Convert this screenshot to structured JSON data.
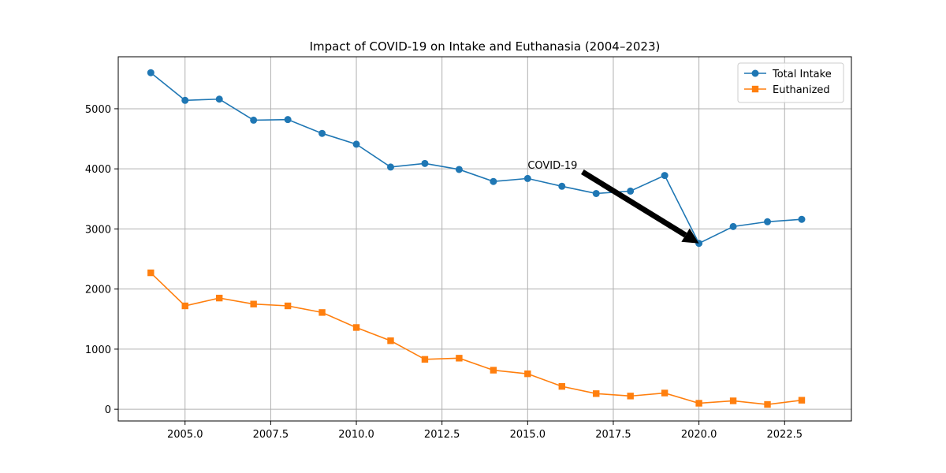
{
  "chart_data": {
    "type": "line",
    "title": "Impact of COVID-19 on Intake and Euthanasia (2004–2023)",
    "xlabel": "",
    "ylabel": "",
    "xlim": [
      2003.05,
      2024.45
    ],
    "ylim": [
      -195,
      5865
    ],
    "xticks": [
      2005.0,
      2007.5,
      2010.0,
      2012.5,
      2015.0,
      2017.5,
      2020.0,
      2022.5
    ],
    "xtick_labels": [
      "2005.0",
      "2007.5",
      "2010.0",
      "2012.5",
      "2015.0",
      "2017.5",
      "2020.0",
      "2022.5"
    ],
    "yticks": [
      0,
      1000,
      2000,
      3000,
      4000,
      5000
    ],
    "ytick_labels": [
      "0",
      "1000",
      "2000",
      "3000",
      "4000",
      "5000"
    ],
    "grid": true,
    "legend_position": "top-right",
    "x": [
      2004,
      2005,
      2006,
      2007,
      2008,
      2009,
      2010,
      2011,
      2012,
      2013,
      2014,
      2015,
      2016,
      2017,
      2018,
      2019,
      2020,
      2021,
      2022,
      2023
    ],
    "series": [
      {
        "name": "Total Intake",
        "color": "#1f77b4",
        "marker": "circle",
        "values": [
          5600,
          5140,
          5160,
          4810,
          4820,
          4590,
          4410,
          4030,
          4090,
          3990,
          3790,
          3840,
          3710,
          3590,
          3630,
          3890,
          2760,
          3040,
          3120,
          3160
        ]
      },
      {
        "name": "Euthanized",
        "color": "#ff7f0e",
        "marker": "square",
        "values": [
          2270,
          1720,
          1850,
          1750,
          1720,
          1610,
          1360,
          1140,
          830,
          850,
          650,
          590,
          380,
          260,
          220,
          270,
          100,
          140,
          80,
          150
        ]
      }
    ],
    "annotations": [
      {
        "text": "COVID-19",
        "text_x": 2015.0,
        "text_y": 4000,
        "arrow_tail_x": 2016.6,
        "arrow_tail_y": 3950,
        "arrow_head_x": 2020.0,
        "arrow_head_y": 2760
      }
    ]
  }
}
